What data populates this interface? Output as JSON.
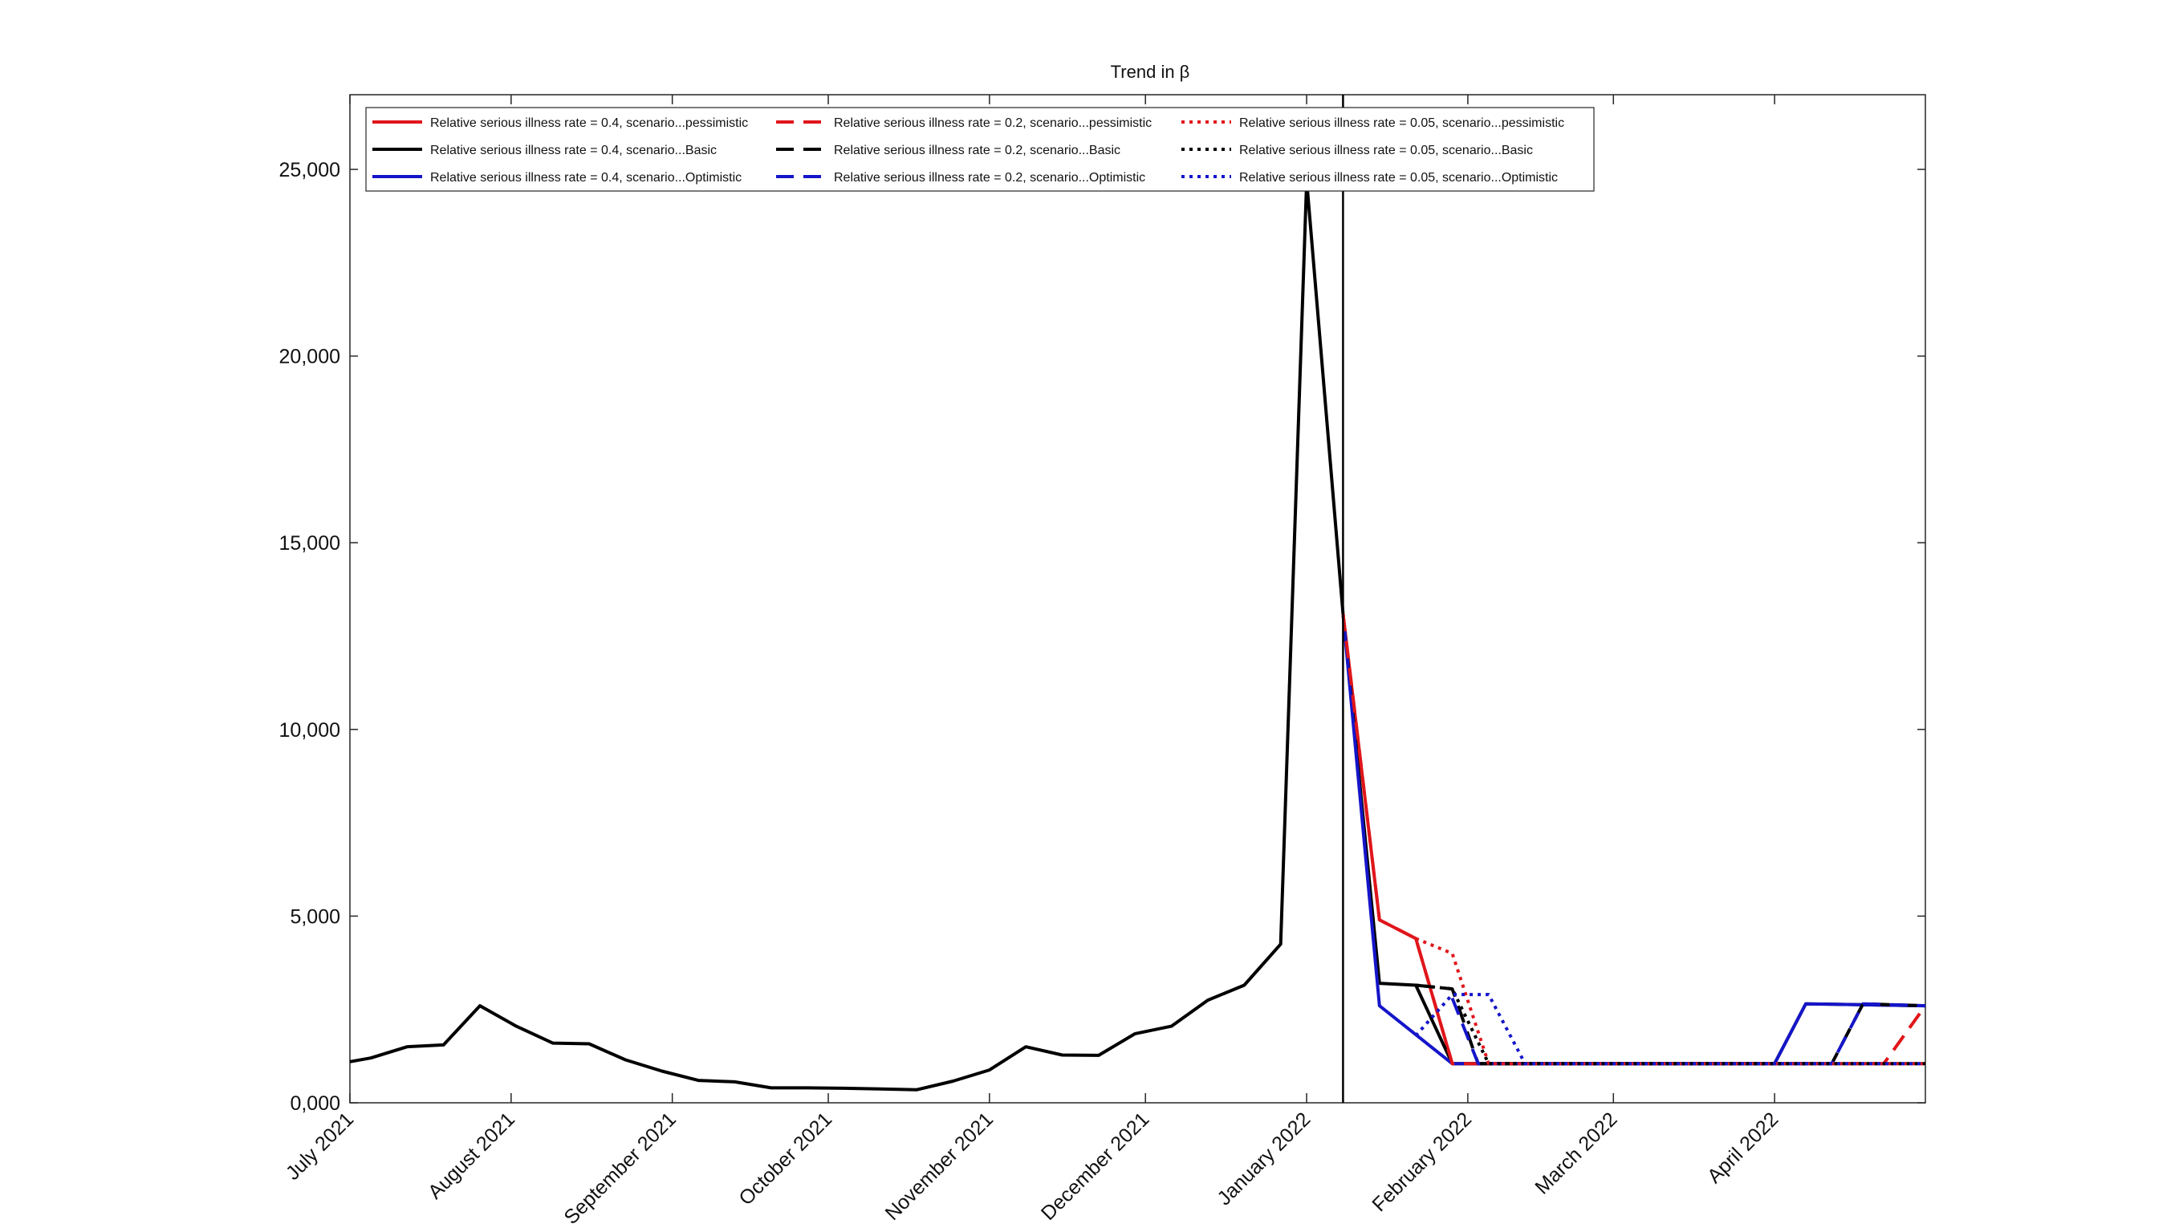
{
  "chart_data": {
    "type": "line",
    "title": "Trend in β",
    "xlabel": "",
    "ylabel": "",
    "grid": false,
    "legend_position": "top-left",
    "xlim": [
      "2021-07-01",
      "2022-04-30"
    ],
    "ylim": [
      0,
      27000
    ],
    "y_ticks": [
      0,
      5000,
      10000,
      15000,
      20000,
      25000
    ],
    "y_tick_labels": [
      "0,000",
      "5,000",
      "10,000",
      "15,000",
      "20,000",
      "25,000"
    ],
    "x_ticks": [
      "2021-07-01",
      "2021-08-01",
      "2021-09-01",
      "2021-10-01",
      "2021-11-01",
      "2021-12-01",
      "2022-01-01",
      "2022-02-01",
      "2022-03-01",
      "2022-04-01"
    ],
    "x_tick_labels": [
      "July 2021",
      "August 2021",
      "September 2021",
      "October 2021",
      "November 2021",
      "December 2021",
      "January 2022",
      "February 2022",
      "March 2022",
      "April 2022"
    ],
    "vline_date": "2022-01-08",
    "history": {
      "dates": [
        "2021-07-01",
        "2021-07-05",
        "2021-07-12",
        "2021-07-19",
        "2021-07-26",
        "2021-08-02",
        "2021-08-09",
        "2021-08-16",
        "2021-08-23",
        "2021-08-30",
        "2021-09-06",
        "2021-09-13",
        "2021-09-20",
        "2021-09-27",
        "2021-10-04",
        "2021-10-11",
        "2021-10-18",
        "2021-10-25",
        "2021-11-01",
        "2021-11-08",
        "2021-11-15",
        "2021-11-22",
        "2021-11-29",
        "2021-12-06",
        "2021-12-13",
        "2021-12-20",
        "2021-12-27",
        "2022-01-01",
        "2022-01-08"
      ],
      "values": [
        1100,
        1200,
        1500,
        1550,
        2600,
        2050,
        1600,
        1580,
        1150,
        850,
        600,
        560,
        400,
        400,
        390,
        370,
        350,
        580,
        880,
        1500,
        1280,
        1270,
        1850,
        2050,
        2750,
        3150,
        4250,
        24700,
        13100
      ]
    },
    "series": [
      {
        "name": "Relative serious illness rate = 0.4, scenario...pessimistic",
        "color": "#e0161b",
        "dash": "solid",
        "x": [
          "2022-01-08",
          "2022-01-15",
          "2022-01-22",
          "2022-01-29",
          "2022-04-12",
          "2022-04-19",
          "2022-04-26",
          "2022-04-30"
        ],
        "y": [
          13100,
          4900,
          4400,
          1050,
          1050,
          1050,
          1050,
          1050
        ]
      },
      {
        "name": "Relative serious illness rate = 0.4, scenario...Basic",
        "color": "#000000",
        "dash": "solid",
        "x": [
          "2022-01-08",
          "2022-01-15",
          "2022-01-22",
          "2022-01-29",
          "2022-04-01",
          "2022-04-07",
          "2022-04-30"
        ],
        "y": [
          13100,
          3200,
          3150,
          1050,
          1050,
          2650,
          2600
        ]
      },
      {
        "name": "Relative serious illness rate = 0.4, scenario...Optimistic",
        "color": "#1515c9",
        "dash": "solid",
        "x": [
          "2022-01-08",
          "2022-01-15",
          "2022-01-29",
          "2022-04-01",
          "2022-04-07",
          "2022-04-30"
        ],
        "y": [
          13100,
          2600,
          1050,
          1050,
          2650,
          2600
        ]
      },
      {
        "name": "Relative serious illness rate = 0.2, scenario...pessimistic",
        "color": "#e0161b",
        "dash": "dashed",
        "x": [
          "2022-01-08",
          "2022-01-15",
          "2022-01-22",
          "2022-01-29",
          "2022-04-22",
          "2022-04-30"
        ],
        "y": [
          13100,
          4900,
          4400,
          1050,
          1050,
          2600
        ]
      },
      {
        "name": "Relative serious illness rate = 0.2, scenario...Basic",
        "color": "#000000",
        "dash": "dashed",
        "x": [
          "2022-01-22",
          "2022-01-29",
          "2022-02-03",
          "2022-04-12",
          "2022-04-18",
          "2022-04-30"
        ],
        "y": [
          3150,
          3050,
          1050,
          1050,
          2650,
          2600
        ]
      },
      {
        "name": "Relative serious illness rate = 0.2, scenario...Optimistic",
        "color": "#1515c9",
        "dash": "dashed",
        "x": [
          "2022-01-29",
          "2022-02-03",
          "2022-04-12",
          "2022-04-18",
          "2022-04-30"
        ],
        "y": [
          2800,
          1050,
          1050,
          2650,
          2600
        ]
      },
      {
        "name": "Relative serious illness rate = 0.05, scenario...pessimistic",
        "color": "#e0161b",
        "dash": "dotted",
        "x": [
          "2022-01-22",
          "2022-01-29",
          "2022-02-05",
          "2022-04-30"
        ],
        "y": [
          4400,
          4000,
          1050,
          1050
        ]
      },
      {
        "name": "Relative serious illness rate = 0.05, scenario...Basic",
        "color": "#000000",
        "dash": "dotted",
        "x": [
          "2022-01-22",
          "2022-01-29",
          "2022-02-05",
          "2022-04-30"
        ],
        "y": [
          3150,
          3050,
          1050,
          1050
        ]
      },
      {
        "name": "Relative serious illness rate = 0.05, scenario...Optimistic",
        "color": "#1515c9",
        "dash": "dotted",
        "x": [
          "2022-01-22",
          "2022-01-29",
          "2022-02-05",
          "2022-02-12",
          "2022-04-30"
        ],
        "y": [
          1800,
          2900,
          2900,
          1050,
          1050
        ]
      }
    ]
  }
}
